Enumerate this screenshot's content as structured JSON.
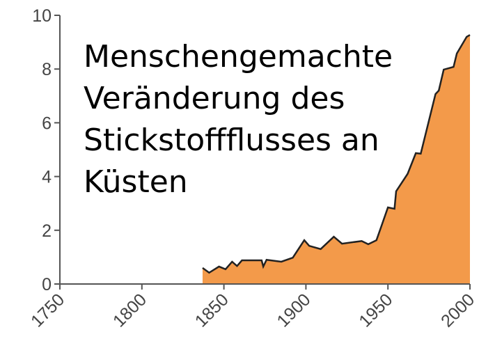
{
  "chart_data": {
    "type": "area",
    "title": "Menschengemachte Veränderung des Stickstoffflusses an Küsten",
    "x": [
      1837,
      1841,
      1847,
      1851,
      1855,
      1858,
      1861,
      1873,
      1874,
      1876,
      1885,
      1892,
      1899,
      1902,
      1909,
      1917,
      1922,
      1934,
      1938,
      1943,
      1946,
      1950,
      1954,
      1955,
      1962,
      1967,
      1970,
      1979,
      1981,
      1984,
      1990,
      1992,
      1998,
      2000
    ],
    "values": [
      0.6,
      0.42,
      0.65,
      0.55,
      0.83,
      0.67,
      0.88,
      0.88,
      0.65,
      0.9,
      0.83,
      0.98,
      1.63,
      1.42,
      1.3,
      1.76,
      1.5,
      1.6,
      1.48,
      1.63,
      2.15,
      2.85,
      2.8,
      3.45,
      4.1,
      4.87,
      4.85,
      7.07,
      7.2,
      7.98,
      8.08,
      8.58,
      9.2,
      9.27
    ],
    "color": "#f39a4a",
    "xlim": [
      1750,
      2000
    ],
    "xticks": [
      1750,
      1800,
      1850,
      1900,
      1950,
      2000
    ],
    "ylim": [
      0,
      10
    ],
    "yticks": [
      0,
      2,
      4,
      6,
      8,
      10
    ]
  }
}
